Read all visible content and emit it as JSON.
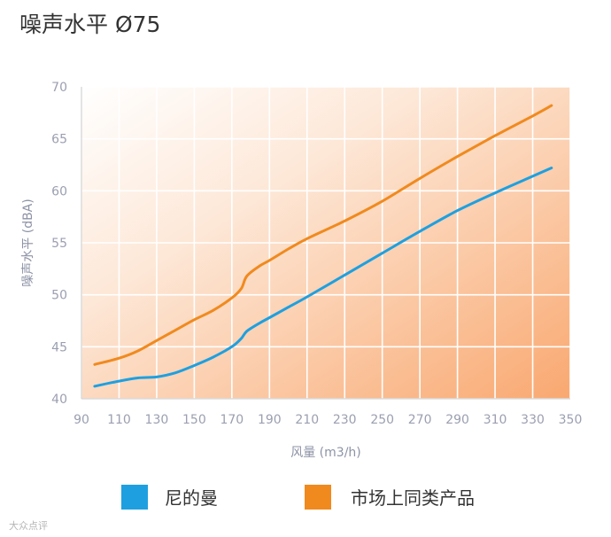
{
  "page": {
    "title": "噪声水平 Ø75",
    "watermark": "大众点评"
  },
  "chart_data": {
    "type": "line",
    "title": "噪声水平 Ø75",
    "xlabel": "风量 (m3/h)",
    "ylabel": "噪声水平 (dBA)",
    "xlim": [
      90,
      350
    ],
    "ylim": [
      40,
      70
    ],
    "xticks": [
      90,
      110,
      130,
      150,
      170,
      190,
      210,
      230,
      250,
      270,
      290,
      310,
      330,
      350
    ],
    "yticks": [
      40,
      45,
      50,
      55,
      60,
      65,
      70
    ],
    "grid": true,
    "legend_position": "bottom",
    "series": [
      {
        "name": "尼的曼",
        "color": "#1ea0e0",
        "x": [
          97,
          110,
          120,
          130,
          140,
          150,
          160,
          170,
          175,
          178,
          185,
          190,
          200,
          210,
          230,
          250,
          270,
          290,
          310,
          330,
          340
        ],
        "y": [
          41.2,
          41.7,
          42.0,
          42.1,
          42.5,
          43.2,
          44.0,
          45.0,
          45.8,
          46.5,
          47.3,
          47.8,
          48.8,
          49.8,
          51.9,
          54.0,
          56.1,
          58.1,
          59.8,
          61.4,
          62.2
        ]
      },
      {
        "name": "市场上同类产品",
        "color": "#f08a1e",
        "x": [
          97,
          110,
          120,
          130,
          140,
          150,
          160,
          170,
          175,
          178,
          185,
          190,
          200,
          210,
          230,
          250,
          270,
          290,
          310,
          330,
          340
        ],
        "y": [
          43.3,
          43.9,
          44.6,
          45.6,
          46.6,
          47.6,
          48.5,
          49.7,
          50.6,
          51.8,
          52.8,
          53.3,
          54.4,
          55.4,
          57.1,
          59.0,
          61.2,
          63.3,
          65.3,
          67.2,
          68.2
        ]
      }
    ]
  }
}
